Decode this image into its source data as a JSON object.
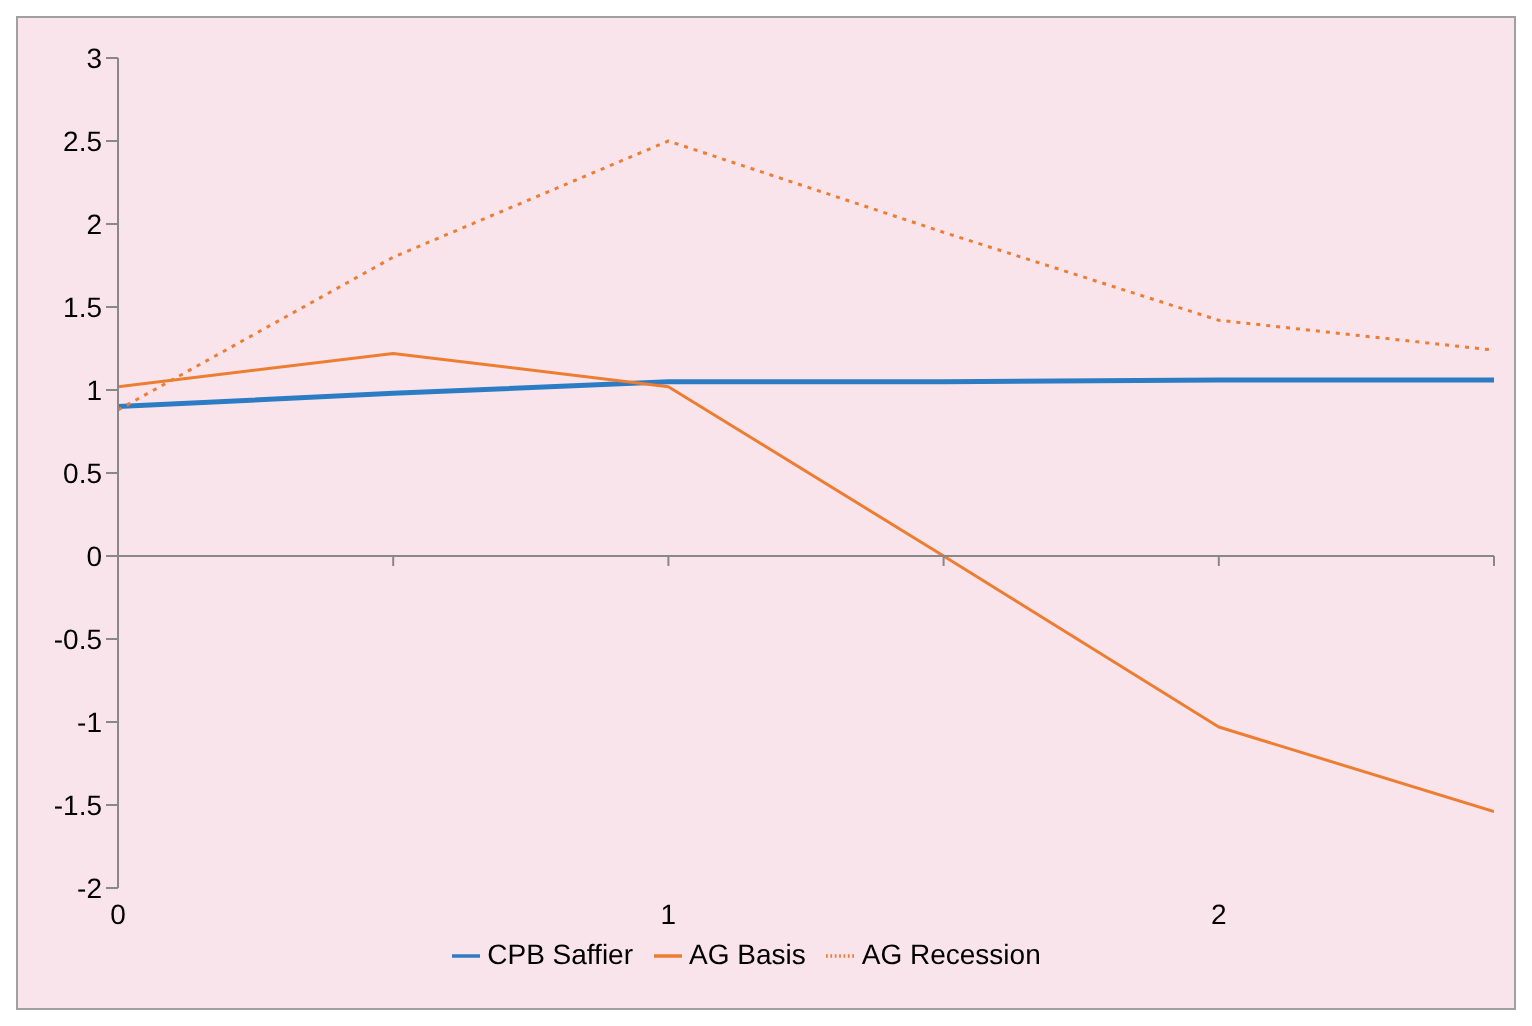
{
  "chart_data": {
    "type": "line",
    "x": [
      0,
      0.5,
      1,
      1.5,
      2,
      2.5
    ],
    "series": [
      {
        "name": "CPB Saffier",
        "color": "#2c7cc4",
        "values": [
          0.9,
          0.98,
          1.05,
          1.05,
          1.06,
          1.06
        ],
        "line_style": "solid"
      },
      {
        "name": "AG Basis",
        "color": "#ed7d31",
        "values": [
          1.02,
          1.22,
          1.02,
          0,
          -1.03,
          -1.54
        ],
        "line_style": "solid"
      },
      {
        "name": "AG Recession",
        "color": "#ed7d31",
        "values": [
          0.88,
          1.8,
          2.5,
          1.95,
          1.42,
          1.24
        ],
        "line_style": "dotted"
      }
    ],
    "xlim": [
      0,
      2.5
    ],
    "xticks": [
      0,
      {
        "value": 0.5,
        "label": null
      },
      1,
      {
        "value": 1.5,
        "label": null
      },
      2,
      {
        "value": 2.5,
        "label": null
      }
    ],
    "ylim": [
      -2,
      3
    ],
    "yticks": [
      -2,
      -1.5,
      -1,
      -0.5,
      0,
      0.5,
      1,
      1.5,
      2,
      2.5,
      3
    ],
    "legend": "bottom",
    "marker": "none"
  }
}
